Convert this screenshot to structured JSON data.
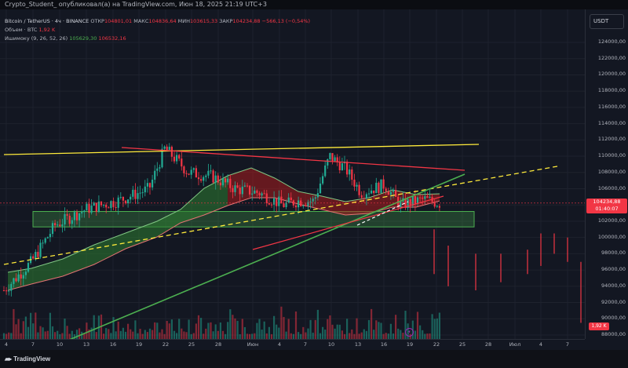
{
  "header": {
    "publish_text": "Crypto_Student_ опубликовал(а) на TradingView.com, Июн 18, 2025 21:19 UTC+3"
  },
  "legend": {
    "symbol": "Bitcoin / TetherUS · 4ч · BINANCE",
    "open_label": "ОТКР",
    "open_value": "104801,01",
    "high_label": "МАКС",
    "high_value": "104836,64",
    "low_label": "МИН",
    "low_value": "103615,33",
    "close_label": "ЗАКР",
    "close_value": "104234,88",
    "change": "−566,13 (−0,54%)",
    "volume_label": "Объем · BTC",
    "volume_value": "1,92 K",
    "ichimoku_label": "Ишимоку (9, 26, 52, 26)",
    "ichimoku_green": "105629,30",
    "ichimoku_red": "106532,16"
  },
  "price_axis": {
    "currency": "USDT",
    "labels": [
      "124000,00",
      "122000,00",
      "120000,00",
      "118000,00",
      "116000,00",
      "114000,00",
      "112000,00",
      "110000,00",
      "108000,00",
      "106000,00",
      "104000,00",
      "102000,00",
      "100000,00",
      "98000,00",
      "96000,00",
      "94000,00",
      "92000,00",
      "90000,00",
      "88000,00"
    ],
    "current_price": "104234,88",
    "countdown": "01:40:07",
    "volume_badge": "1,92 K"
  },
  "time_axis": {
    "labels": [
      "4",
      "7",
      "10",
      "13",
      "16",
      "19",
      "22",
      "25",
      "28",
      "Июн",
      "4",
      "7",
      "10",
      "13",
      "16",
      "19",
      "22",
      "25",
      "28",
      "Июл",
      "4",
      "7"
    ]
  },
  "footer": {
    "brand": "TradingView"
  },
  "colors": {
    "up": "#22ab94",
    "down": "#f23645",
    "cloud_up": "#1b5e20",
    "cloud_down": "#7f1d1d",
    "support_zone": "#2e7d32",
    "resistance_line": "#ffeb3b"
  }
}
